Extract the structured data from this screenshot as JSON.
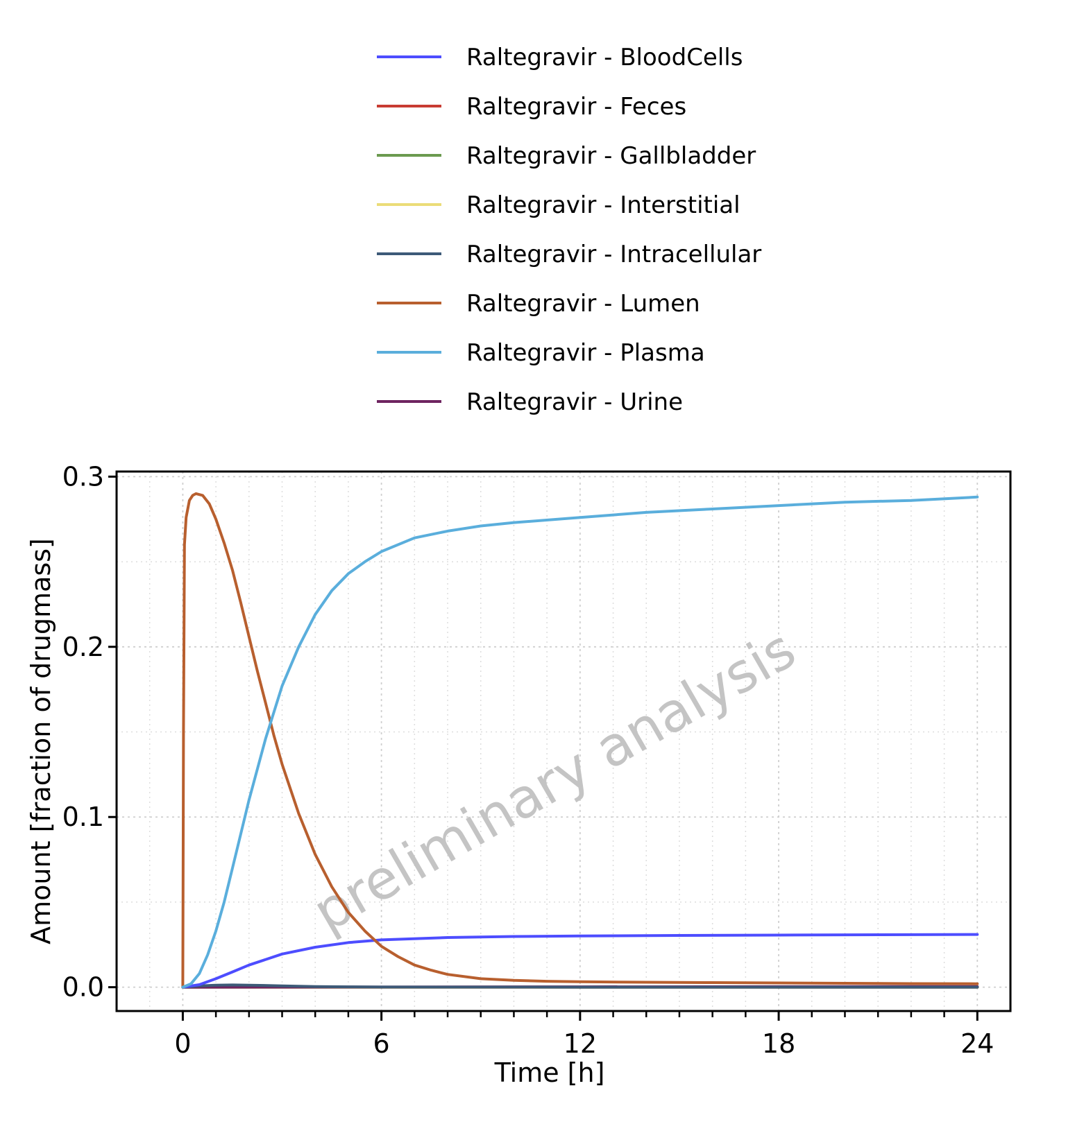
{
  "chart_data": {
    "type": "line",
    "title": "",
    "xlabel": "Time [h]",
    "ylabel": "Amount [fraction of drugmass]",
    "xlim": [
      -2,
      25
    ],
    "ylim": [
      -0.014,
      0.303
    ],
    "xticks": [
      0,
      6,
      12,
      18,
      24
    ],
    "yticks": [
      0.0,
      0.1,
      0.2,
      0.3
    ],
    "xtick_labels": [
      "0",
      "6",
      "12",
      "18",
      "24"
    ],
    "ytick_labels": [
      "0.0",
      "0.1",
      "0.2",
      "0.3"
    ],
    "grid": true,
    "legend_position": "top-center",
    "watermark": "preliminary analysis",
    "series": [
      {
        "name": "Raltegravir - BloodCells",
        "color": "#4d4dff",
        "x": [
          0,
          0.5,
          1,
          1.5,
          2,
          3,
          4,
          5,
          6,
          8,
          10,
          12,
          15,
          18,
          21,
          24
        ],
        "y": [
          0,
          0.0015,
          0.005,
          0.009,
          0.013,
          0.0195,
          0.0235,
          0.0262,
          0.0278,
          0.0292,
          0.0298,
          0.0301,
          0.0304,
          0.0306,
          0.0308,
          0.031
        ]
      },
      {
        "name": "Raltegravir - Feces",
        "color": "#c83c32",
        "x": [
          0,
          6,
          12,
          18,
          24
        ],
        "y": [
          0,
          0,
          0,
          0,
          0
        ]
      },
      {
        "name": "Raltegravir - Gallbladder",
        "color": "#6b9a4f",
        "x": [
          0,
          6,
          12,
          18,
          24
        ],
        "y": [
          0,
          0,
          0,
          0,
          0
        ]
      },
      {
        "name": "Raltegravir - Interstitial",
        "color": "#ebdc78",
        "x": [
          0,
          6,
          12,
          18,
          24
        ],
        "y": [
          0,
          0,
          0,
          0,
          0
        ]
      },
      {
        "name": "Raltegravir - Intracellular",
        "color": "#3d5a78",
        "x": [
          0,
          0.5,
          1,
          1.5,
          2,
          3,
          4,
          5,
          6,
          12,
          24
        ],
        "y": [
          0,
          0.0008,
          0.0012,
          0.0013,
          0.0012,
          0.0008,
          0.0004,
          0.0002,
          0.0001,
          0,
          0
        ]
      },
      {
        "name": "Raltegravir - Lumen",
        "color": "#b85f2e",
        "x": [
          0,
          0.02,
          0.05,
          0.1,
          0.2,
          0.3,
          0.4,
          0.6,
          0.8,
          1.0,
          1.25,
          1.5,
          1.75,
          2.0,
          2.25,
          2.5,
          2.75,
          3.0,
          3.5,
          4.0,
          4.5,
          5.0,
          5.5,
          6.0,
          6.5,
          7.0,
          7.5,
          8.0,
          9.0,
          10.0,
          11.0,
          12.0,
          14.0,
          16.0,
          18.0,
          20.0,
          22.0,
          24.0
        ],
        "y": [
          0,
          0.15,
          0.26,
          0.276,
          0.286,
          0.289,
          0.29,
          0.289,
          0.284,
          0.275,
          0.261,
          0.245,
          0.226,
          0.206,
          0.186,
          0.167,
          0.148,
          0.131,
          0.102,
          0.078,
          0.059,
          0.044,
          0.033,
          0.024,
          0.018,
          0.013,
          0.01,
          0.0075,
          0.005,
          0.004,
          0.0035,
          0.0032,
          0.0029,
          0.0027,
          0.0025,
          0.0023,
          0.0021,
          0.002
        ]
      },
      {
        "name": "Raltegravir - Plasma",
        "color": "#5aaedc",
        "x": [
          0,
          0.25,
          0.5,
          0.75,
          1.0,
          1.25,
          1.5,
          1.75,
          2.0,
          2.5,
          3.0,
          3.5,
          4.0,
          4.5,
          5.0,
          5.5,
          6.0,
          7.0,
          8.0,
          9.0,
          10.0,
          12.0,
          14.0,
          16.0,
          18.0,
          20.0,
          22.0,
          24.0
        ],
        "y": [
          0,
          0.002,
          0.008,
          0.019,
          0.033,
          0.05,
          0.07,
          0.09,
          0.11,
          0.146,
          0.177,
          0.2,
          0.219,
          0.233,
          0.243,
          0.25,
          0.256,
          0.264,
          0.268,
          0.271,
          0.273,
          0.276,
          0.279,
          0.281,
          0.283,
          0.285,
          0.286,
          0.288
        ]
      },
      {
        "name": "Raltegravir - Urine",
        "color": "#6e2460",
        "x": [
          0,
          6,
          12,
          18,
          24
        ],
        "y": [
          0,
          0.0001,
          0.0002,
          0.0003,
          0.0004
        ]
      }
    ]
  }
}
